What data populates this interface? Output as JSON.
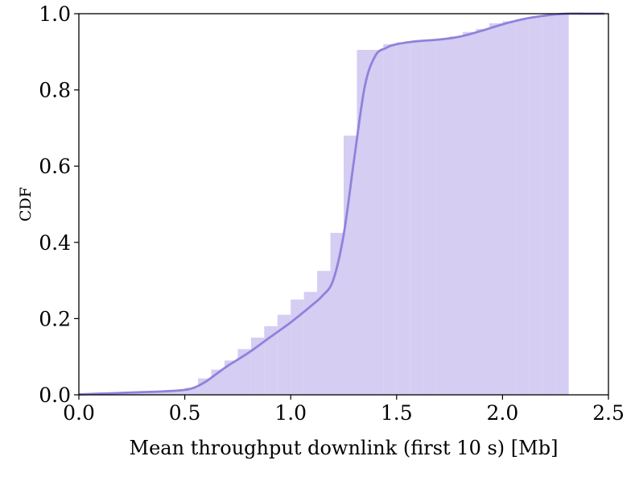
{
  "chart_data": {
    "type": "area",
    "xlabel": "Mean throughput downlink (first 10 s) [Mb]",
    "ylabel": "CDF",
    "xlim": [
      0.0,
      2.5
    ],
    "ylim": [
      0.0,
      1.0
    ],
    "x_ticks": [
      "0.0",
      "0.5",
      "1.0",
      "1.5",
      "2.0",
      "2.5"
    ],
    "y_ticks": [
      "0.0",
      "0.2",
      "0.4",
      "0.6",
      "0.8",
      "1.0"
    ],
    "grid": false,
    "colors": {
      "bars": "#d5cdf2",
      "line": "#8f82dc"
    },
    "histogram": {
      "bin_edges": [
        0.0,
        0.0625,
        0.125,
        0.1875,
        0.25,
        0.3125,
        0.375,
        0.4375,
        0.5,
        0.5625,
        0.625,
        0.6875,
        0.75,
        0.8125,
        0.875,
        0.9375,
        1.0,
        1.0625,
        1.125,
        1.1875,
        1.25,
        1.3125,
        1.375,
        1.4375,
        1.5,
        1.5625,
        1.625,
        1.6875,
        1.75,
        1.8125,
        1.875,
        1.9375,
        2.0,
        2.0625,
        2.125,
        2.1875,
        2.25,
        2.3125
      ],
      "cdf": [
        0.002,
        0.003,
        0.004,
        0.005,
        0.007,
        0.008,
        0.009,
        0.01,
        0.018,
        0.043,
        0.066,
        0.09,
        0.12,
        0.15,
        0.18,
        0.21,
        0.25,
        0.27,
        0.325,
        0.425,
        0.68,
        0.905,
        0.905,
        0.92,
        0.925,
        0.928,
        0.93,
        0.935,
        0.94,
        0.952,
        0.96,
        0.975,
        0.98,
        0.985,
        0.99,
        0.995,
        1.0
      ]
    },
    "kde_cdf": {
      "x": [
        0.0,
        0.1,
        0.2,
        0.3,
        0.4,
        0.5,
        0.55,
        0.6,
        0.65,
        0.7,
        0.8,
        0.9,
        1.0,
        1.1,
        1.15,
        1.2,
        1.25,
        1.3,
        1.35,
        1.4,
        1.45,
        1.5,
        1.6,
        1.7,
        1.8,
        1.9,
        2.0,
        2.1,
        2.2,
        2.3,
        2.4,
        2.48
      ],
      "y": [
        0.001,
        0.003,
        0.005,
        0.007,
        0.009,
        0.013,
        0.02,
        0.035,
        0.055,
        0.075,
        0.11,
        0.15,
        0.19,
        0.235,
        0.26,
        0.3,
        0.42,
        0.62,
        0.81,
        0.89,
        0.91,
        0.92,
        0.928,
        0.932,
        0.94,
        0.955,
        0.972,
        0.986,
        0.995,
        1.0,
        1.0,
        1.0
      ]
    }
  }
}
